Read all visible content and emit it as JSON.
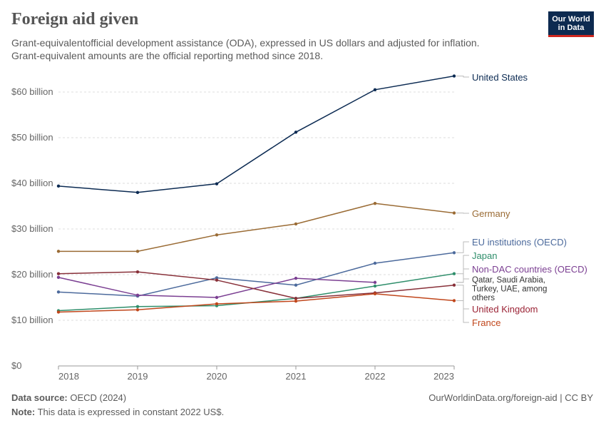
{
  "header": {
    "title": "Foreign aid given",
    "subtitle_line1": "Grant-equivalentofficial development assistance (ODA), expressed in US dollars and adjusted for inflation.",
    "subtitle_line2": "Grant-equivalent amounts are the official reporting method since 2018."
  },
  "logo": {
    "line1": "Our World",
    "line2": "in Data"
  },
  "footer": {
    "source_label": "Data source:",
    "source_value": " OECD (2024)",
    "note_label": "Note:",
    "note_value": " This data is expressed in constant 2022 US$.",
    "credit": "OurWorldinData.org/foreign-aid | CC BY"
  },
  "chart_data": {
    "type": "line",
    "x": [
      2018,
      2019,
      2020,
      2021,
      2022,
      2023
    ],
    "xticks": [
      "2018",
      "2019",
      "2020",
      "2021",
      "2022",
      "2023"
    ],
    "ylim": [
      0,
      65
    ],
    "yticks": [
      0,
      10,
      20,
      30,
      40,
      50,
      60
    ],
    "ytick_labels": [
      "$0",
      "$10 billion",
      "$20 billion",
      "$30 billion",
      "$40 billion",
      "$50 billion",
      "$60 billion"
    ],
    "grid": "horizontal dashed",
    "legend": "right, inline labels",
    "series": [
      {
        "name": "United States",
        "color": "#0b2a52",
        "values": [
          39.4,
          38.0,
          39.9,
          51.2,
          60.5,
          63.5
        ]
      },
      {
        "name": "Germany",
        "color": "#9a6b34",
        "values": [
          25.1,
          25.1,
          28.7,
          31.1,
          35.6,
          33.5
        ]
      },
      {
        "name": "EU institutions (OECD)",
        "color": "#4c6a9c",
        "values": [
          16.2,
          15.3,
          19.3,
          17.7,
          22.5,
          24.8
        ]
      },
      {
        "name": "Japan",
        "color": "#2f8e6b",
        "values": [
          12.1,
          13.0,
          13.2,
          14.8,
          17.5,
          20.2
        ]
      },
      {
        "name": "Non-DAC countries (OECD)",
        "color": "#7b3f92",
        "values": [
          19.4,
          15.5,
          15.0,
          19.2,
          18.3,
          null
        ]
      },
      {
        "name": "Qatar, Saudi Arabia, Turkey, UAE, among others",
        "color": "#883039",
        "values": [
          20.2,
          20.6,
          18.8,
          14.8,
          16.0,
          17.7
        ]
      },
      {
        "name": "United Kingdom",
        "color": "#b13a3f",
        "values": [
          null,
          null,
          null,
          null,
          null,
          null
        ]
      },
      {
        "name": "France",
        "color": "#c0461b",
        "values": [
          11.8,
          12.3,
          13.6,
          14.2,
          15.8,
          14.3
        ]
      }
    ],
    "labels": [
      {
        "lines": [
          "United States"
        ],
        "color": "#0b2a52",
        "series": 0
      },
      {
        "lines": [
          "Germany"
        ],
        "color": "#9a6b34",
        "series": 1
      },
      {
        "lines": [
          "EU institutions (OECD)"
        ],
        "color": "#4c6a9c",
        "series": 2
      },
      {
        "lines": [
          "Japan"
        ],
        "color": "#2f8e6b",
        "series": 3
      },
      {
        "lines": [
          "Non-DAC countries (OECD)"
        ],
        "color": "#7b3f92",
        "series": 4
      },
      {
        "lines": [
          "Qatar, Saudi Arabia,",
          "Turkey, UAE, among",
          "others"
        ],
        "color": "#333333",
        "series": 4
      },
      {
        "lines": [
          "United Kingdom"
        ],
        "color": "#9b2335",
        "series": 5
      },
      {
        "lines": [
          "France"
        ],
        "color": "#c0461b",
        "series": 7
      }
    ]
  }
}
